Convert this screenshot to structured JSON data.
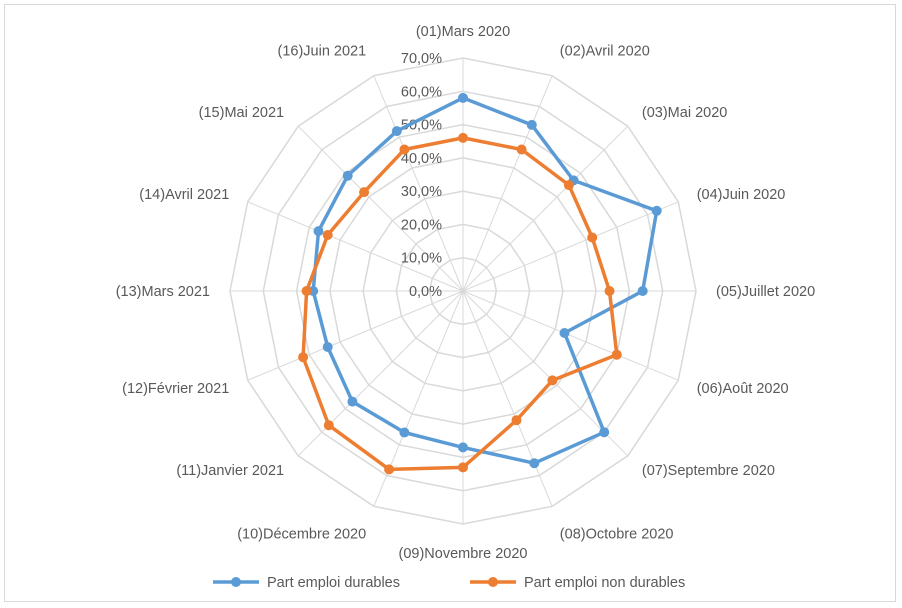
{
  "chart_data": {
    "type": "radar",
    "title": "",
    "categories": [
      "(01)Mars 2020",
      "(02)Avril 2020",
      "(03)Mai 2020",
      "(04)Juin 2020",
      "(05)Juillet 2020",
      "(06)Août 2020",
      "(07)Septembre 2020",
      "(08)Octobre 2020",
      "(09)Novembre 2020",
      "(10)Décembre 2020",
      "(11)Janvier 2021",
      "(12)Février 2021",
      "(13)Mars 2021",
      "(14)Avril 2021",
      "(15)Mai 2021",
      "(16)Juin 2021"
    ],
    "ticks": [
      "0,0%",
      "10,0%",
      "20,0%",
      "30,0%",
      "40,0%",
      "50,0%",
      "60,0%",
      "70,0%"
    ],
    "tick_values": [
      0,
      10,
      20,
      30,
      40,
      50,
      60,
      70
    ],
    "rlim": [
      0,
      70
    ],
    "grid": true,
    "legend_position": "bottom",
    "series": [
      {
        "name": "Part emploi durables",
        "color": "#5b9bd5",
        "values": [
          58,
          54,
          47,
          63,
          54,
          33,
          60,
          56,
          47,
          46,
          47,
          44,
          45,
          47,
          49,
          52
        ]
      },
      {
        "name": "Part emploi non durables",
        "color": "#ed7d31",
        "values": [
          46,
          46,
          45,
          42,
          44,
          50,
          38,
          42,
          53,
          58,
          57,
          52,
          47,
          44,
          42,
          46
        ]
      }
    ]
  }
}
